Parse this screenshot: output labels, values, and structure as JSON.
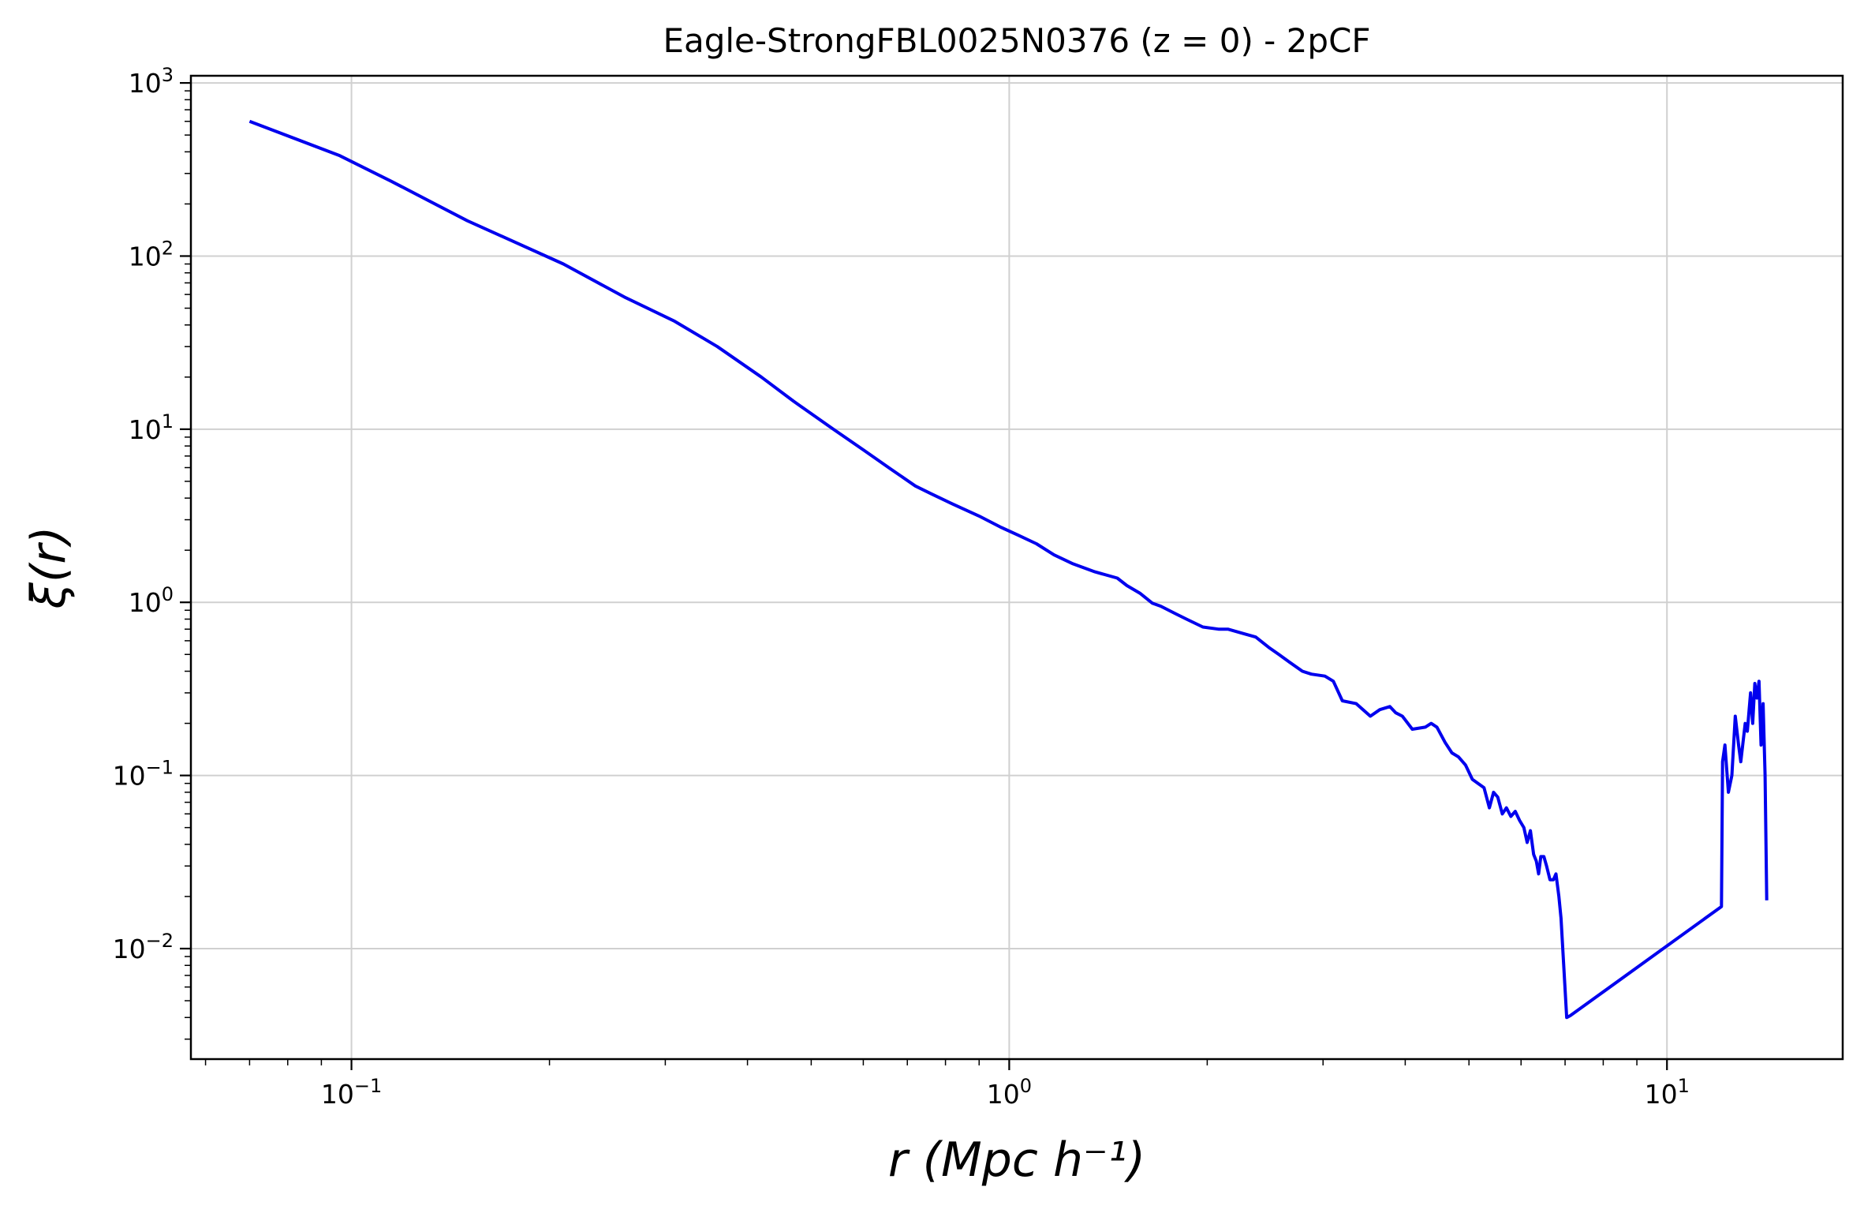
{
  "chart_data": {
    "type": "line",
    "title": "Eagle-StrongFBL0025N0376 (z = 0) - 2pCF",
    "xlabel": "r (Mpc h⁻¹)",
    "ylabel": "ξ(r)",
    "x_scale": "log",
    "y_scale": "log",
    "xlim": [
      0.057,
      18.5
    ],
    "ylim": [
      0.0023,
      1100
    ],
    "grid": true,
    "x_ticks": [
      {
        "value": 0.1,
        "base": "10",
        "exp": "−1"
      },
      {
        "value": 1,
        "base": "10",
        "exp": "0"
      },
      {
        "value": 10,
        "base": "10",
        "exp": "1"
      }
    ],
    "y_ticks": [
      {
        "value": 0.01,
        "base": "10",
        "exp": "−2"
      },
      {
        "value": 0.1,
        "base": "10",
        "exp": "−1"
      },
      {
        "value": 1,
        "base": "10",
        "exp": "0"
      },
      {
        "value": 10,
        "base": "10",
        "exp": "1"
      },
      {
        "value": 100,
        "base": "10",
        "exp": "2"
      },
      {
        "value": 1000,
        "base": "10",
        "exp": "3"
      }
    ],
    "series": [
      {
        "color": "#0000ee",
        "x": [
          0.07,
          0.096,
          0.115,
          0.15,
          0.21,
          0.26,
          0.31,
          0.36,
          0.42,
          0.47,
          0.54,
          0.6,
          0.66,
          0.72,
          0.76,
          0.82,
          0.9,
          0.97,
          1.03,
          1.1,
          1.17,
          1.25,
          1.35,
          1.46,
          1.51,
          1.58,
          1.65,
          1.7,
          1.79,
          1.86,
          1.97,
          2.08,
          2.15,
          2.27,
          2.37,
          2.48,
          2.57,
          2.67,
          2.79,
          2.88,
          3.02,
          3.11,
          3.21,
          3.37,
          3.54,
          3.66,
          3.79,
          3.87,
          3.96,
          4.1,
          4.29,
          4.38,
          4.47,
          4.6,
          4.71,
          4.82,
          4.94,
          5.06,
          5.16,
          5.27,
          5.37,
          5.45,
          5.53,
          5.62,
          5.7,
          5.79,
          5.88,
          5.97,
          6.06,
          6.13,
          6.2,
          6.27,
          6.33,
          6.38,
          6.43,
          6.5,
          6.56,
          6.64,
          6.72,
          6.78,
          6.85,
          6.9,
          6.96,
          7.04,
          7.13,
          12.1,
          12.15,
          12.25,
          12.4,
          12.55,
          12.7,
          12.85,
          12.95,
          13.15,
          13.25,
          13.4,
          13.5,
          13.6,
          13.7,
          13.8,
          13.9,
          14.0,
          14.1,
          14.18
        ],
        "y": [
          600,
          380,
          270,
          160,
          90,
          58,
          42,
          30,
          20,
          14.5,
          10,
          7.6,
          5.9,
          4.7,
          4.25,
          3.7,
          3.15,
          2.72,
          2.45,
          2.18,
          1.88,
          1.67,
          1.5,
          1.38,
          1.25,
          1.13,
          0.99,
          0.95,
          0.86,
          0.8,
          0.72,
          0.7,
          0.7,
          0.66,
          0.63,
          0.55,
          0.5,
          0.45,
          0.4,
          0.385,
          0.375,
          0.35,
          0.27,
          0.26,
          0.22,
          0.24,
          0.25,
          0.23,
          0.22,
          0.185,
          0.19,
          0.2,
          0.19,
          0.155,
          0.135,
          0.128,
          0.115,
          0.095,
          0.09,
          0.085,
          0.065,
          0.08,
          0.075,
          0.06,
          0.065,
          0.058,
          0.062,
          0.055,
          0.05,
          0.041,
          0.048,
          0.035,
          0.032,
          0.027,
          0.034,
          0.034,
          0.03,
          0.025,
          0.025,
          0.027,
          0.02,
          0.015,
          0.0085,
          0.004,
          0.0041,
          0.0175,
          0.12,
          0.15,
          0.08,
          0.1,
          0.22,
          0.15,
          0.12,
          0.2,
          0.18,
          0.3,
          0.2,
          0.34,
          0.28,
          0.35,
          0.15,
          0.26,
          0.1,
          0.019
        ]
      }
    ]
  }
}
